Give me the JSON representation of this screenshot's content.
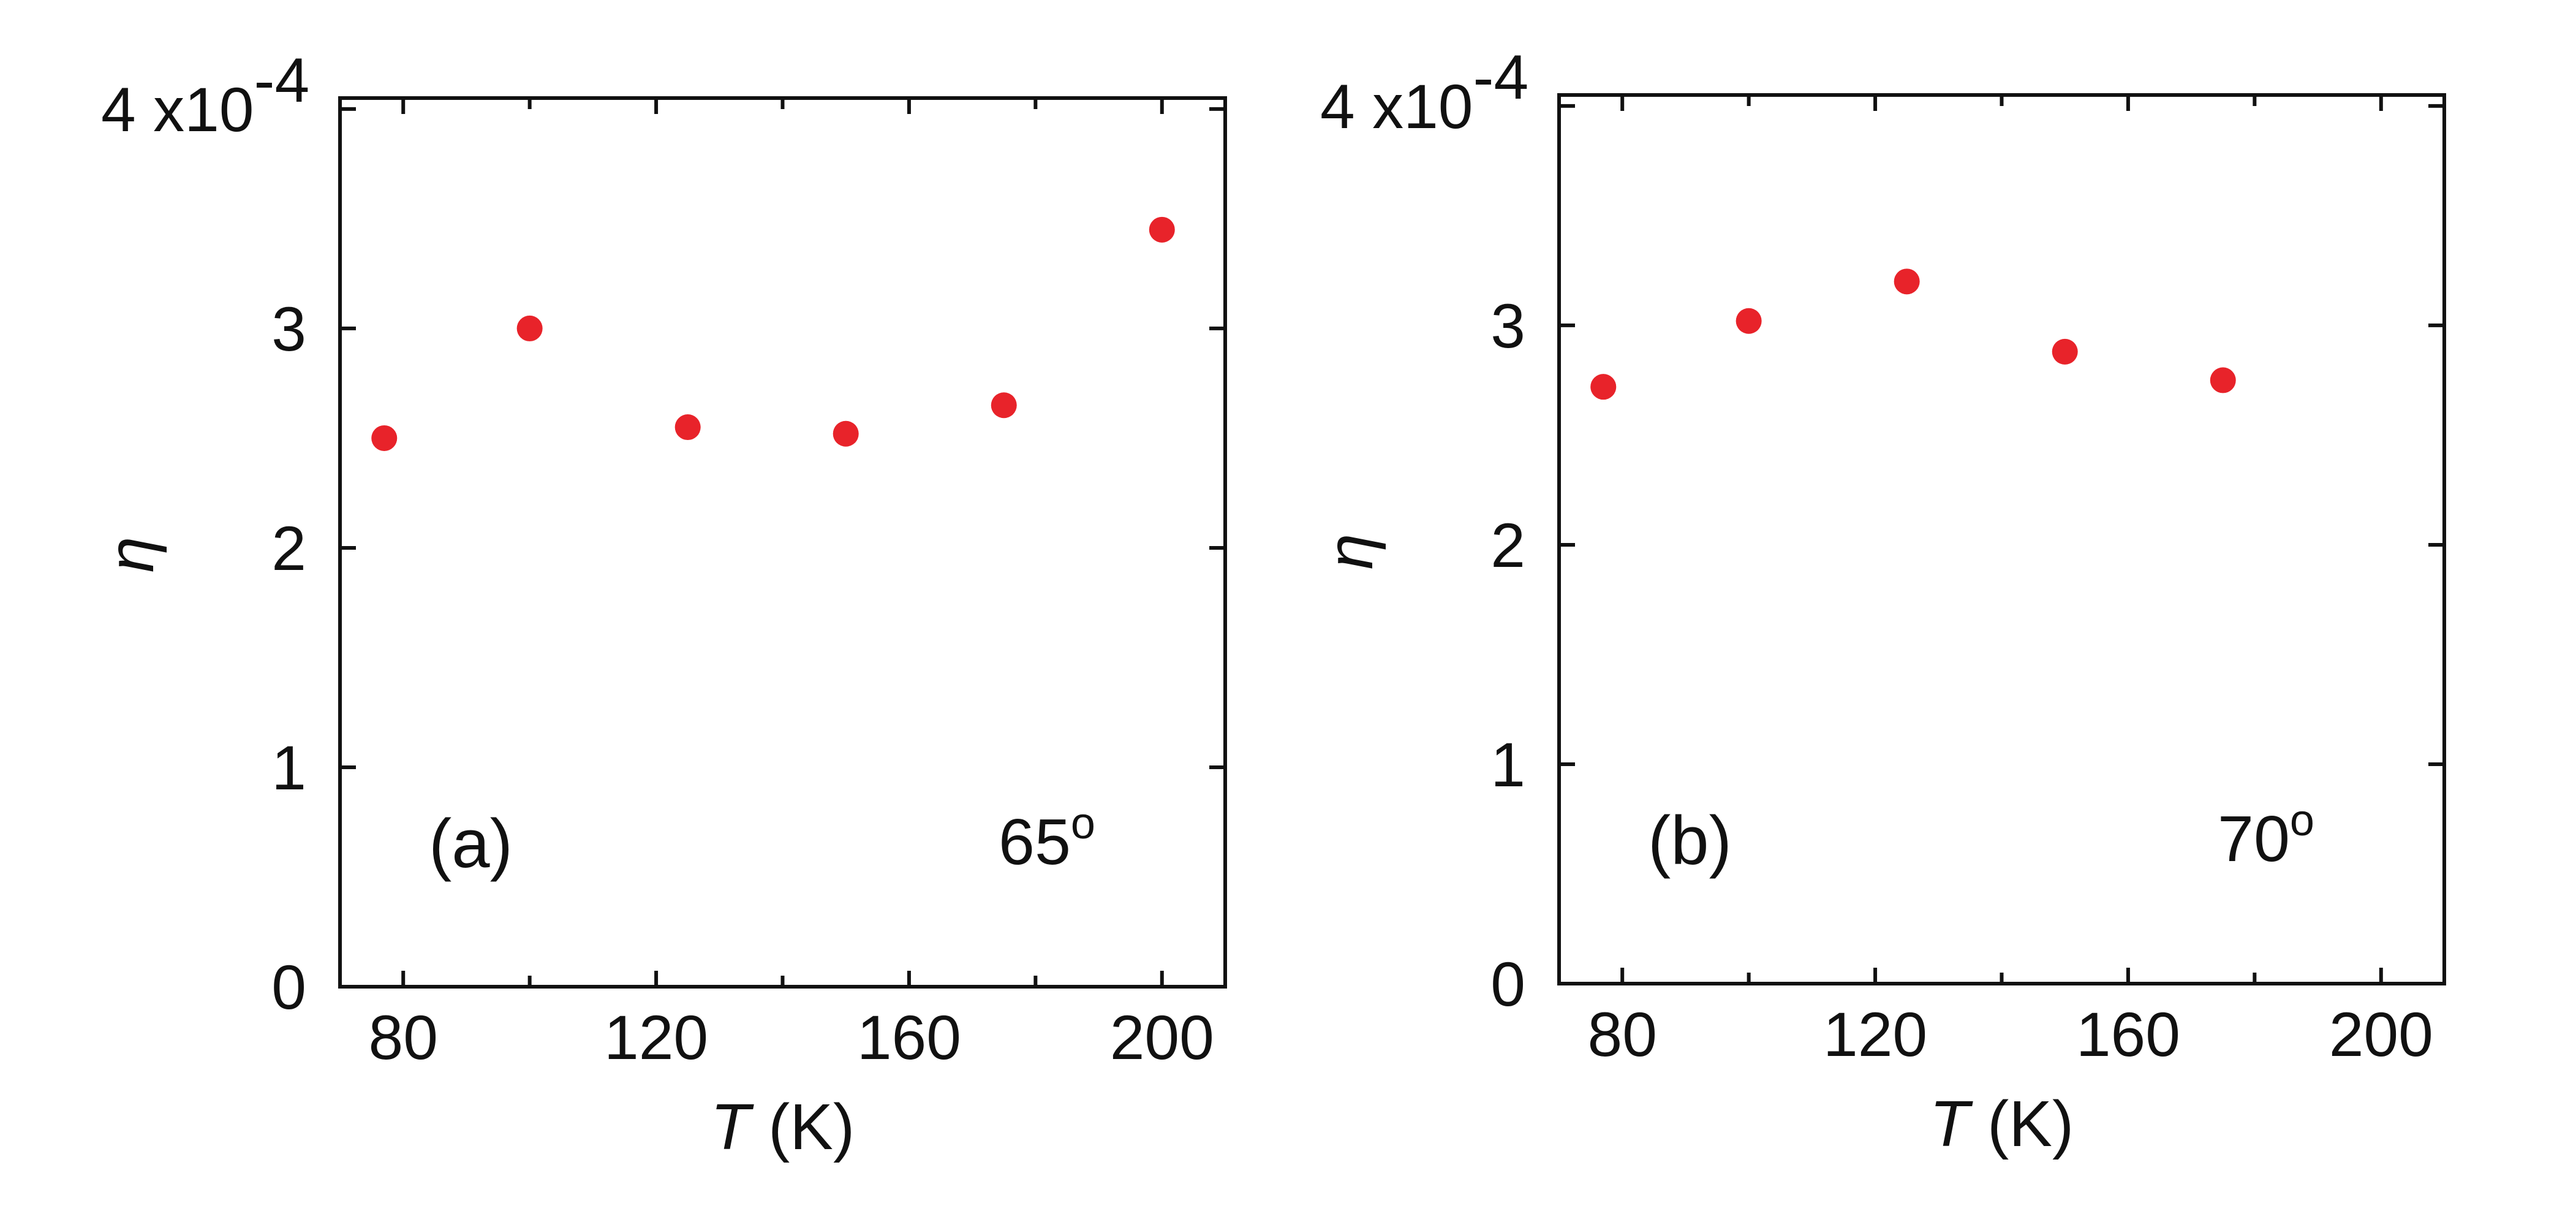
{
  "chart_data": [
    {
      "type": "scatter",
      "panel_label": "(a)",
      "angle_label": "65",
      "angle_superscript": "o",
      "xlabel": "T",
      "xlabel_unit": "(K)",
      "ylabel": "η",
      "y_multiplier": "4 x10",
      "y_multiplier_exponent": "-4",
      "xlim": [
        70,
        210
      ],
      "ylim": [
        0,
        4.05
      ],
      "x_ticks": [
        80,
        120,
        160,
        200
      ],
      "x_tick_labels": [
        "80",
        "120",
        "160",
        "200"
      ],
      "x_minor_ticks": [
        100,
        140,
        180
      ],
      "y_ticks": [
        0,
        1,
        2,
        3
      ],
      "y_tick_labels": [
        "0",
        "1",
        "2",
        "3"
      ],
      "y_top_tick": 4,
      "grid": false,
      "marker_color": "#e8232a",
      "series": [
        {
          "x": [
            77,
            100,
            125,
            150,
            175,
            200
          ],
          "y": [
            2.5,
            3.0,
            2.55,
            2.52,
            2.65,
            3.45
          ]
        }
      ]
    },
    {
      "type": "scatter",
      "panel_label": "(b)",
      "angle_label": "70",
      "angle_superscript": "o",
      "xlabel": "T",
      "xlabel_unit": "(K)",
      "ylabel": "η",
      "y_multiplier": "4 x10",
      "y_multiplier_exponent": "-4",
      "xlim": [
        70,
        210
      ],
      "ylim": [
        0,
        4.05
      ],
      "x_ticks": [
        80,
        120,
        160,
        200
      ],
      "x_tick_labels": [
        "80",
        "120",
        "160",
        "200"
      ],
      "x_minor_ticks": [
        100,
        140,
        180
      ],
      "y_ticks": [
        0,
        1,
        2,
        3
      ],
      "y_tick_labels": [
        "0",
        "1",
        "2",
        "3"
      ],
      "y_top_tick": 4,
      "grid": false,
      "marker_color": "#e8232a",
      "series": [
        {
          "x": [
            77,
            100,
            125,
            150,
            175
          ],
          "y": [
            2.72,
            3.02,
            3.2,
            2.88,
            2.75
          ]
        }
      ]
    }
  ]
}
